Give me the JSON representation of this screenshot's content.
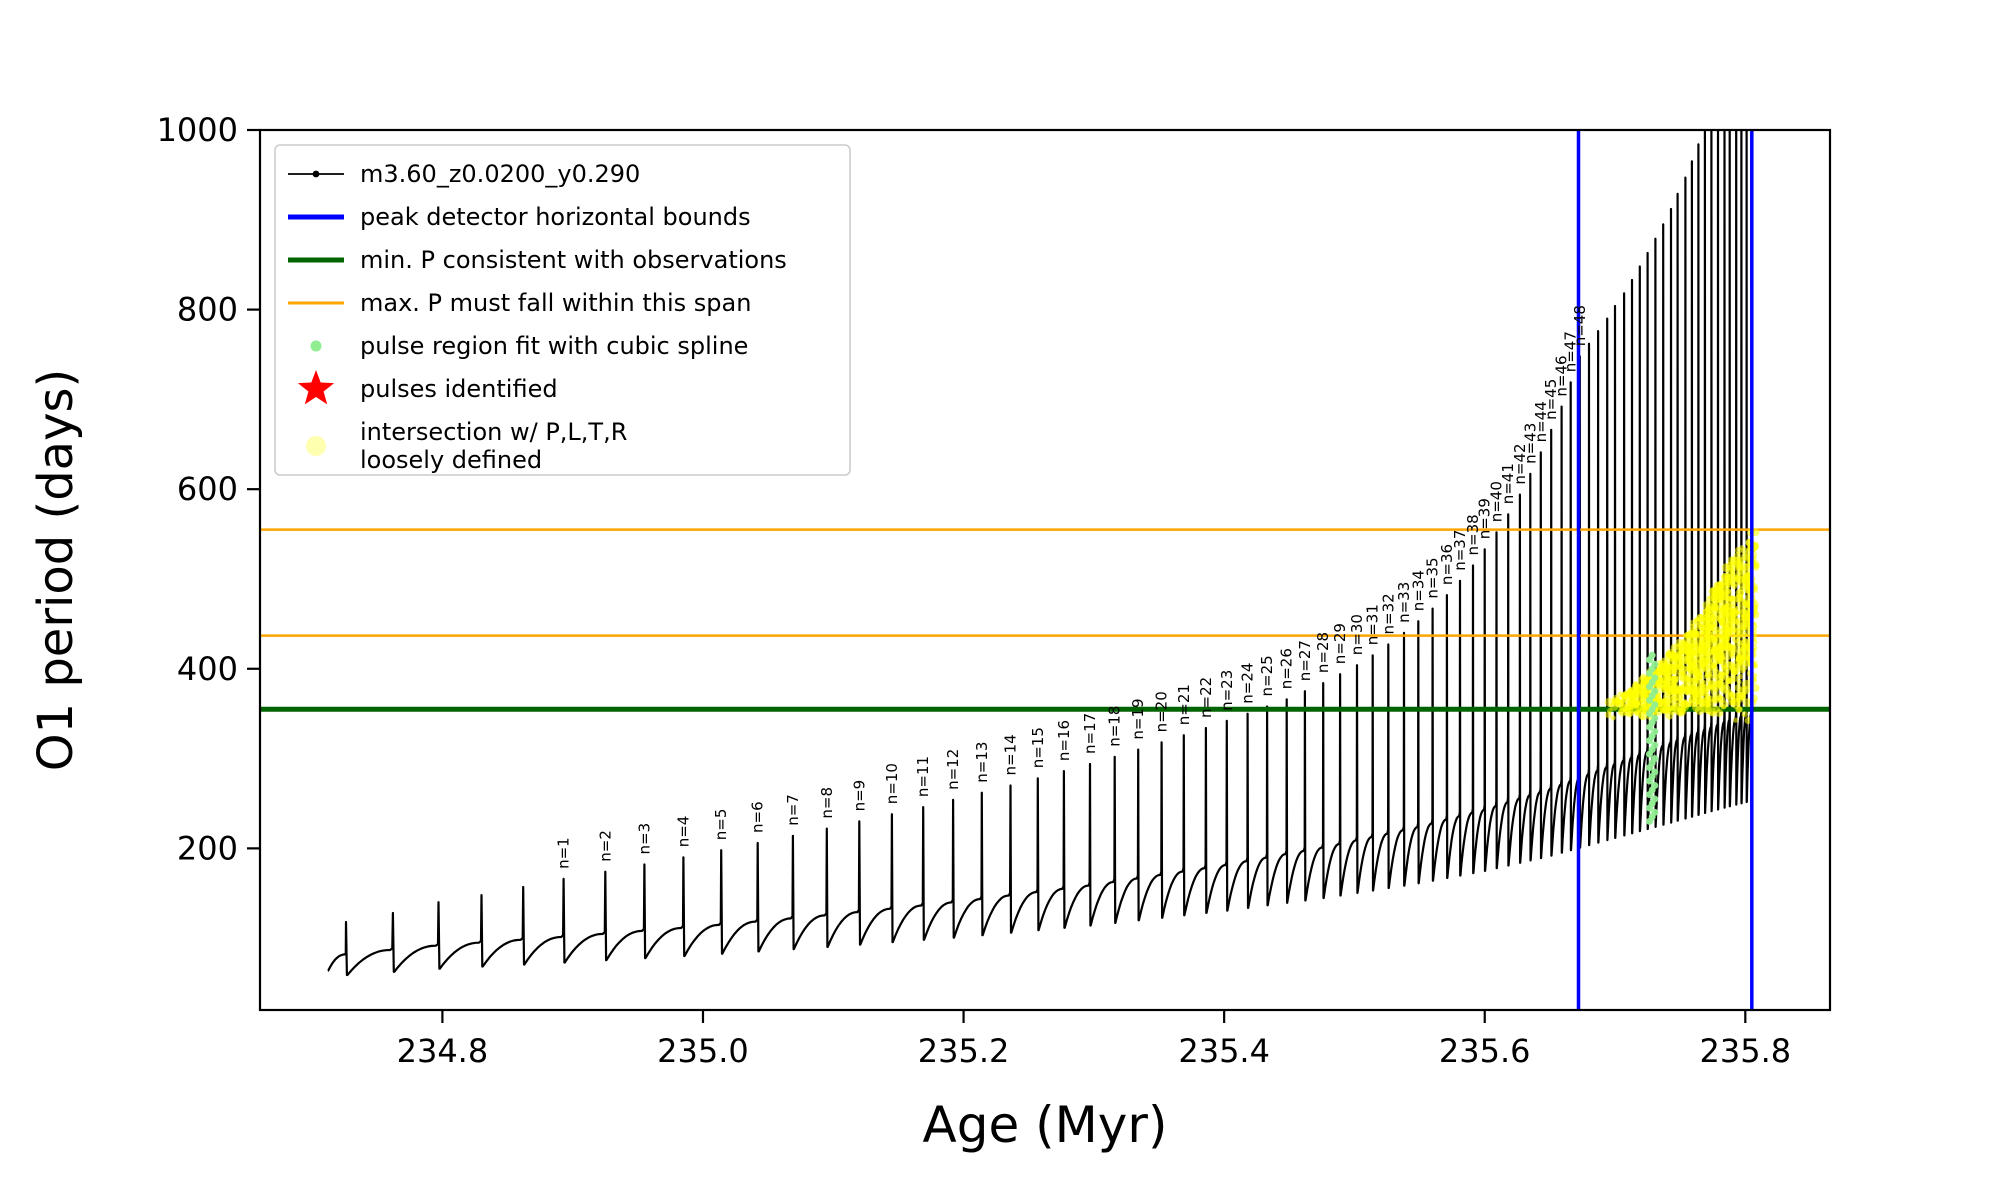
{
  "figure": {
    "background": "#ffffff"
  },
  "chart_data": {
    "type": "line",
    "title": "",
    "xlabel": "Age (Myr)",
    "ylabel": "O1 period (days)",
    "xlim": [
      234.66,
      235.865
    ],
    "ylim": [
      20,
      1000
    ],
    "xticks": [
      "234.8",
      "235.0",
      "235.2",
      "235.4",
      "235.6",
      "235.8"
    ],
    "yticks": [
      "200",
      "400",
      "600",
      "800",
      "1000"
    ],
    "grid": false,
    "legend_position": "upper-left",
    "legend": [
      {
        "label": "m3.60_z0.0200_y0.290",
        "marker": "line-dot",
        "color": "#000000",
        "lw": 1.8
      },
      {
        "label": "peak detector horizontal bounds",
        "marker": "line",
        "color": "#0000ff",
        "lw": 5
      },
      {
        "label": "min. P consistent with observations",
        "marker": "line",
        "color": "#006400",
        "lw": 5
      },
      {
        "label": "max. P must fall within this span",
        "marker": "line",
        "color": "#ffa500",
        "lw": 3
      },
      {
        "label": "pulse region fit with cubic spline",
        "marker": "dot",
        "color": "#90ee90",
        "size": 5.5
      },
      {
        "label": "pulses identified",
        "marker": "star",
        "color": "#ff0000",
        "size": 19
      },
      {
        "label": "intersection w/ P,L,T,R\nloosely defined",
        "marker": "dot",
        "color": "#ffffb0",
        "size": 10
      }
    ],
    "series": {
      "name": "m3.60_z0.0200_y0.290",
      "color": "#000000",
      "lw": 2.2
    },
    "vlines": {
      "color": "#0000ff",
      "lw": 3.5,
      "xs": [
        235.672,
        235.805
      ],
      "label": "peak detector horizontal bounds"
    },
    "hlines": [
      {
        "color": "#006400",
        "y": 355,
        "lw": 5,
        "label": "min. P consistent with observations"
      },
      {
        "color": "#ffa500",
        "y": 437,
        "lw": 2.5,
        "label": "max. P must fall within this span"
      },
      {
        "color": "#ffa500",
        "y": 555,
        "lw": 2.5,
        "label": "max. P must fall within this span"
      }
    ],
    "series_start": {
      "age": 234.712,
      "value": 64
    },
    "dip_ratio": 0.72,
    "baseline_anchors": [
      [
        234.712,
        80
      ],
      [
        234.8,
        92
      ],
      [
        234.9,
        102
      ],
      [
        235.0,
        113
      ],
      [
        235.1,
        126
      ],
      [
        235.2,
        141
      ],
      [
        235.3,
        159
      ],
      [
        235.4,
        181
      ],
      [
        235.48,
        202
      ],
      [
        235.55,
        224
      ],
      [
        235.6,
        243
      ],
      [
        235.65,
        266
      ],
      [
        235.7,
        294
      ],
      [
        235.74,
        316
      ],
      [
        235.77,
        333
      ],
      [
        235.79,
        344
      ],
      [
        235.806,
        352
      ]
    ],
    "pulses_age_peak_n": [
      [
        234.726,
        118,
        0
      ],
      [
        234.762,
        128,
        0
      ],
      [
        234.797,
        140,
        0
      ],
      [
        234.83,
        148,
        0
      ],
      [
        234.862,
        157,
        0
      ],
      [
        234.893,
        166,
        1
      ],
      [
        234.925,
        174,
        2
      ],
      [
        234.955,
        182,
        3
      ],
      [
        234.985,
        190,
        4
      ],
      [
        235.014,
        198,
        5
      ],
      [
        235.042,
        206,
        6
      ],
      [
        235.069,
        214,
        7
      ],
      [
        235.095,
        222,
        8
      ],
      [
        235.12,
        230,
        9
      ],
      [
        235.145,
        238,
        10
      ],
      [
        235.169,
        246,
        11
      ],
      [
        235.192,
        254,
        12
      ],
      [
        235.214,
        262,
        13
      ],
      [
        235.236,
        270,
        14
      ],
      [
        235.257,
        278,
        15
      ],
      [
        235.277,
        286,
        16
      ],
      [
        235.297,
        294,
        17
      ],
      [
        235.316,
        302,
        18
      ],
      [
        235.334,
        310,
        19
      ],
      [
        235.352,
        318,
        20
      ],
      [
        235.369,
        326,
        21
      ],
      [
        235.386,
        334,
        22
      ],
      [
        235.402,
        342,
        23
      ],
      [
        235.418,
        350,
        24
      ],
      [
        235.433,
        358,
        25
      ],
      [
        235.448,
        366,
        26
      ],
      [
        235.462,
        375,
        27
      ],
      [
        235.476,
        384,
        28
      ],
      [
        235.489,
        394,
        29
      ],
      [
        235.502,
        404,
        30
      ],
      [
        235.514,
        415,
        31
      ],
      [
        235.526,
        427,
        32
      ],
      [
        235.538,
        440,
        33
      ],
      [
        235.549,
        453,
        34
      ],
      [
        235.56,
        467,
        35
      ],
      [
        235.571,
        482,
        36
      ],
      [
        235.581,
        498,
        37
      ],
      [
        235.591,
        515,
        38
      ],
      [
        235.6,
        533,
        39
      ],
      [
        235.609,
        552,
        40
      ],
      [
        235.618,
        572,
        41
      ],
      [
        235.627,
        594,
        42
      ],
      [
        235.635,
        617,
        43
      ],
      [
        235.643,
        641,
        44
      ],
      [
        235.651,
        666,
        45
      ],
      [
        235.659,
        692,
        46
      ],
      [
        235.666,
        719,
        47
      ],
      [
        235.673,
        748,
        48
      ],
      [
        235.68,
        762,
        0
      ],
      [
        235.687,
        776,
        0
      ],
      [
        235.694,
        790,
        0
      ],
      [
        235.7,
        804,
        0
      ],
      [
        235.707,
        818,
        0
      ],
      [
        235.713,
        833,
        0
      ],
      [
        235.719,
        848,
        0
      ],
      [
        235.725,
        863,
        0
      ],
      [
        235.731,
        879,
        0
      ],
      [
        235.737,
        895,
        0
      ],
      [
        235.743,
        912,
        0
      ],
      [
        235.748,
        929,
        0
      ],
      [
        235.754,
        947,
        0
      ],
      [
        235.759,
        965,
        0
      ],
      [
        235.764,
        984,
        0
      ],
      [
        235.769,
        1004,
        0
      ],
      [
        235.774,
        1025,
        0
      ],
      [
        235.779,
        1047,
        0
      ],
      [
        235.784,
        1070,
        0
      ],
      [
        235.788,
        1094,
        0
      ],
      [
        235.793,
        1119,
        0
      ],
      [
        235.797,
        1145,
        0
      ],
      [
        235.801,
        1172,
        0
      ],
      [
        235.805,
        1200,
        0
      ]
    ],
    "pulse_label_prefix": "n=",
    "green_scatter": {
      "color": "#90ee90",
      "label": "pulse region fit with cubic spline",
      "points": [
        [
          235.7265,
          230
        ],
        [
          235.7285,
          235
        ],
        [
          235.7305,
          240
        ],
        [
          235.7265,
          245
        ],
        [
          235.7285,
          250
        ],
        [
          235.7305,
          255
        ],
        [
          235.7265,
          260
        ],
        [
          235.7285,
          265
        ],
        [
          235.7305,
          270
        ],
        [
          235.7265,
          275
        ],
        [
          235.7285,
          280
        ],
        [
          235.7305,
          285
        ],
        [
          235.7265,
          290
        ],
        [
          235.7285,
          295
        ],
        [
          235.7305,
          300
        ],
        [
          235.7265,
          305
        ],
        [
          235.7285,
          310
        ],
        [
          235.7305,
          315
        ],
        [
          235.7265,
          320
        ],
        [
          235.7285,
          325
        ],
        [
          235.7305,
          330
        ],
        [
          235.7265,
          335
        ],
        [
          235.7285,
          340
        ],
        [
          235.7305,
          345
        ],
        [
          235.7265,
          350
        ],
        [
          235.7285,
          355
        ],
        [
          235.7305,
          360
        ],
        [
          235.7265,
          365
        ],
        [
          235.7285,
          370
        ],
        [
          235.7305,
          375
        ],
        [
          235.7265,
          380
        ],
        [
          235.7285,
          385
        ],
        [
          235.7305,
          390
        ],
        [
          235.7265,
          395
        ],
        [
          235.7285,
          400
        ],
        [
          235.7305,
          405
        ],
        [
          235.7265,
          410
        ],
        [
          235.7285,
          415
        ]
      ]
    },
    "yellow_region": {
      "color": "#ffff00",
      "label": "intersection w/ P,L,T,R loosely defined",
      "x_range": [
        235.692,
        235.808
      ],
      "lower": 348,
      "upper_anchors": [
        [
          235.692,
          360
        ],
        [
          235.71,
          378
        ],
        [
          235.73,
          400
        ],
        [
          235.75,
          430
        ],
        [
          235.765,
          462
        ],
        [
          235.78,
          500
        ],
        [
          235.79,
          528
        ],
        [
          235.8,
          548
        ],
        [
          235.808,
          558
        ]
      ],
      "n_points": 950
    }
  }
}
